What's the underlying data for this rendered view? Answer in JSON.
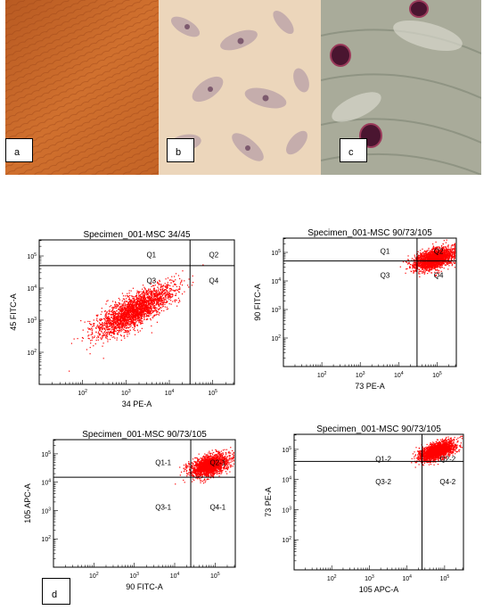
{
  "micrographs": [
    {
      "label": "a",
      "fill": "#c8662a"
    },
    {
      "label": "b",
      "fill": "#e8cfb2"
    },
    {
      "label": "c",
      "fill": "#a8aa98"
    }
  ],
  "panel_d_label": "d",
  "chart_data": [
    {
      "type": "scatter",
      "title": "Specimen_001-MSC 34/45",
      "xlabel": "34 PE-A",
      "ylabel": "45 FITC-A",
      "xlim": [
        10,
        316228
      ],
      "ylim": [
        10,
        316228
      ],
      "log_scale": true,
      "xticks": [
        "10^2",
        "10^3",
        "10^4",
        "10^5"
      ],
      "yticks": [
        "10^2",
        "10^3",
        "10^4",
        "10^5"
      ],
      "quadrants": [
        "Q1",
        "Q2",
        "Q3",
        "Q4"
      ],
      "gate_x": 30000,
      "gate_y": 50000,
      "population": {
        "center_x": 1500,
        "center_y": 2000,
        "color": "#ff0000"
      }
    },
    {
      "type": "scatter",
      "title": "Specimen_001-MSC 90/73/105",
      "xlabel": "73 PE-A",
      "ylabel": "90 FITC-A",
      "xlim": [
        10,
        316228
      ],
      "ylim": [
        10,
        316228
      ],
      "log_scale": true,
      "xticks": [
        "10^2",
        "10^3",
        "10^4",
        "10^5"
      ],
      "yticks": [
        "10^2",
        "10^3",
        "10^4",
        "10^5"
      ],
      "quadrants": [
        "Q1",
        "Q2",
        "Q3",
        "Q4"
      ],
      "gate_x": 30000,
      "gate_y": 50000,
      "population": {
        "center_x": 80000,
        "center_y": 60000,
        "color": "#ff0000"
      }
    },
    {
      "type": "scatter",
      "title": "Specimen_001-MSC 90/73/105",
      "xlabel": "90 FITC-A",
      "ylabel": "105 APC-A",
      "xlim": [
        10,
        316228
      ],
      "ylim": [
        10,
        316228
      ],
      "log_scale": true,
      "xticks": [
        "10^2",
        "10^3",
        "10^4",
        "10^5"
      ],
      "yticks": [
        "10^2",
        "10^3",
        "10^4",
        "10^5"
      ],
      "quadrants": [
        "Q1-1",
        "Q2-1",
        "Q3-1",
        "Q4-1"
      ],
      "gate_x": 25000,
      "gate_y": 15000,
      "population": {
        "center_x": 70000,
        "center_y": 40000,
        "color": "#ff0000"
      }
    },
    {
      "type": "scatter",
      "title": "Specimen_001-MSC 90/73/105",
      "xlabel": "105 APC-A",
      "ylabel": "73 PE-A",
      "xlim": [
        10,
        316228
      ],
      "ylim": [
        10,
        316228
      ],
      "log_scale": true,
      "xticks": [
        "10^2",
        "10^3",
        "10^4",
        "10^5"
      ],
      "yticks": [
        "10^2",
        "10^3",
        "10^4",
        "10^5"
      ],
      "quadrants": [
        "Q1-2",
        "Q2-2",
        "Q3-2",
        "Q4-2"
      ],
      "gate_x": 25000,
      "gate_y": 40000,
      "population": {
        "center_x": 60000,
        "center_y": 90000,
        "color": "#ff0000"
      }
    }
  ]
}
